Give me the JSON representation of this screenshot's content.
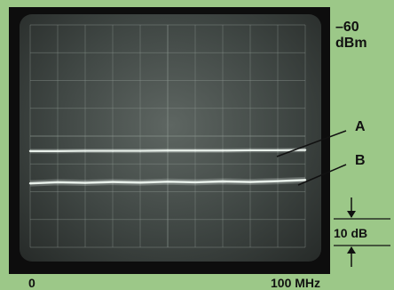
{
  "chart_data": {
    "type": "line",
    "x": [
      0,
      10,
      20,
      30,
      40,
      50,
      60,
      70,
      80,
      90,
      100
    ],
    "xlim": [
      0,
      100
    ],
    "x_tick_labels": {
      "left": "0",
      "right": "100 MHz"
    },
    "ylabel_top": "-60 dBm",
    "y_scale_per_division": "10 dB",
    "y_units": "dBm",
    "ylim": [
      -140,
      -60
    ],
    "grid": true,
    "series": [
      {
        "name": "A",
        "values": [
          -105.4,
          -105.4,
          -105.3,
          -105.3,
          -105.3,
          -105.2,
          -105.2,
          -105.2,
          -105.1,
          -105.1,
          -105.0
        ]
      },
      {
        "name": "B",
        "values": [
          -117.0,
          -116.6,
          -116.8,
          -116.5,
          -116.7,
          -116.4,
          -116.6,
          -116.3,
          -116.5,
          -116.2,
          -115.8
        ]
      }
    ]
  },
  "labels": {
    "top_ref": "–60 dBm",
    "series_a": "A",
    "series_b": "B",
    "x_left": "0",
    "x_right": "100 MHz",
    "scale": "10 dB"
  },
  "colors": {
    "background": "#9cc888",
    "trace": "#e8f0ea",
    "grid": "#8c9690"
  }
}
